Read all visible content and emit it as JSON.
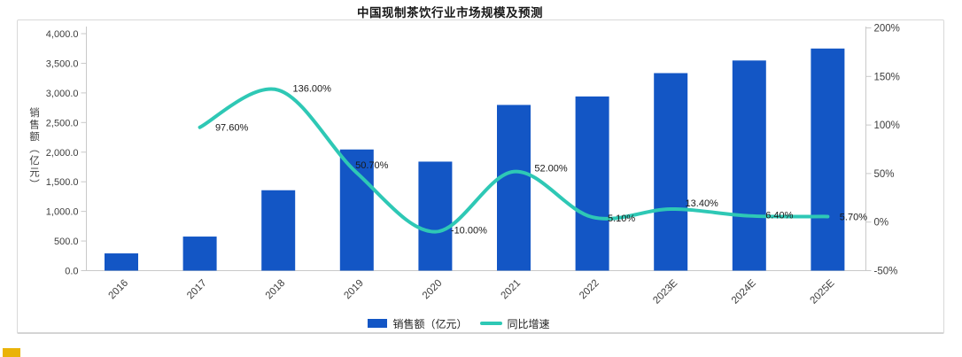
{
  "window": {
    "background": "#ffffff",
    "accent_square_color": "#eab308"
  },
  "chart_data": {
    "type": "combo",
    "title": "中国现制茶饮行业市场规模及预测",
    "categories": [
      "2016",
      "2017",
      "2018",
      "2019",
      "2020",
      "2021",
      "2022",
      "2023E",
      "2024E",
      "2025E"
    ],
    "series": [
      {
        "name": "销售额（亿元）",
        "type": "bar",
        "axis": "left",
        "color": "#1356c5",
        "values": [
          291,
          575,
          1357,
          2045,
          1840,
          2797,
          2940,
          3334,
          3547,
          3749
        ]
      },
      {
        "name": "同比增速",
        "type": "line",
        "axis": "right",
        "color": "#2ec8b5",
        "values": [
          null,
          97.6,
          136.0,
          50.7,
          -10.0,
          52.0,
          5.1,
          13.4,
          6.4,
          5.7
        ],
        "point_labels": [
          null,
          "97.60%",
          "136.00%",
          "50.70%",
          "-10.00%",
          "52.00%",
          "5.10%",
          "13.40%",
          "6.40%",
          "5.70%"
        ]
      }
    ],
    "left_axis": {
      "title": "销售额（亿元）",
      "min": 0,
      "max": 4000,
      "tick_step": 500,
      "tick_labels": [
        "0.0",
        "500.0",
        "1,000.0",
        "1,500.0",
        "2,000.0",
        "2,500.0",
        "3,000.0",
        "3,500.0",
        "4,000.0"
      ]
    },
    "right_axis": {
      "min": -50,
      "max": 200,
      "tick_step": 50,
      "tick_labels": [
        "-50%",
        "0%",
        "50%",
        "100%",
        "150%",
        "200%"
      ]
    },
    "legend": {
      "position": "bottom",
      "items": [
        {
          "label": "销售额（亿元）",
          "marker": "bar",
          "color": "#1356c5"
        },
        {
          "label": "同比增速",
          "marker": "line",
          "color": "#2ec8b5"
        }
      ]
    },
    "grid": false
  }
}
